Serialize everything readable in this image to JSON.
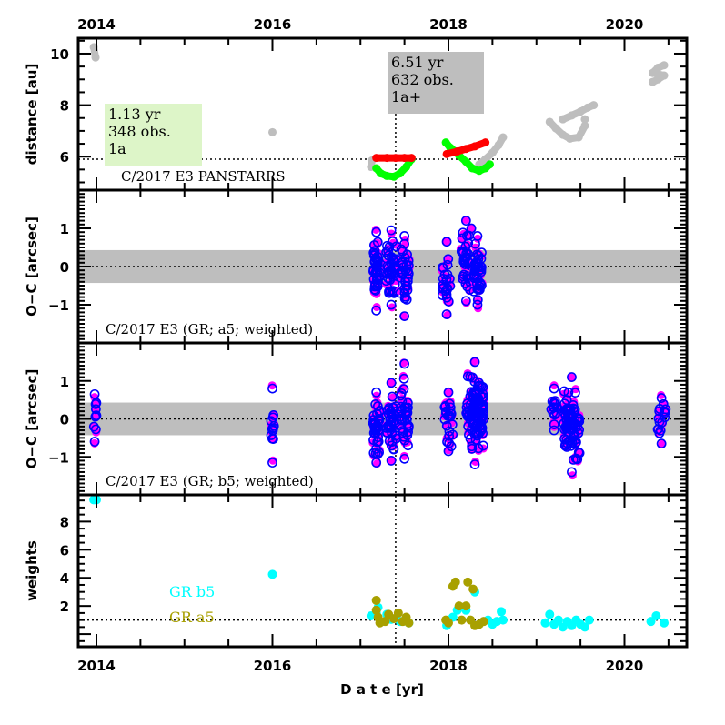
{
  "chart_data": {
    "type": "scatter",
    "title": "C/2017 E3 PANSTARRS",
    "xlabel": "D a t e [yr]",
    "x_ticks": [
      "2014",
      "2016",
      "2018",
      "2020"
    ],
    "x_tick_values": [
      2014,
      2016,
      2018,
      2020
    ],
    "xlim": [
      2013.8,
      2020.7
    ],
    "reference_epoch": 2017.4,
    "colors": {
      "prediscovery": "#bebebe",
      "perihelion_pre": "#00ff00",
      "arc_a5": "#ff0000",
      "oc_weighted_fill": "#ff00ff",
      "oc_circle": "#0000ff",
      "band": "#bebebe",
      "weights_b5": "#00ffff",
      "weights_a5": "#a8a000",
      "box_a": "#ddf5c8",
      "box_b": "#bebebe"
    },
    "panels": [
      {
        "id": "distance",
        "ylabel": "distance [au]",
        "ylim": [
          4.7,
          10.6
        ],
        "y_ticks": [
          "6",
          "8",
          "10"
        ],
        "y_tick_values": [
          6,
          8,
          10
        ],
        "reference_line": 5.9,
        "annotation": "C/2017 E3 PANSTARRS",
        "boxes": [
          {
            "lines": [
              "1.13 yr",
              "348 obs.",
              "1a"
            ],
            "style": "green",
            "position": "left"
          },
          {
            "lines": [
              "6.51 yr",
              "632 obs.",
              "1a+"
            ],
            "style": "grey",
            "position": "center"
          }
        ],
        "series": [
          {
            "name": "gray-observations",
            "color": "#bebebe",
            "points": [
              [
                2013.97,
                10.25
              ],
              [
                2013.99,
                9.85
              ],
              [
                2016.0,
                6.95
              ],
              [
                2017.13,
                5.85
              ],
              [
                2017.12,
                5.6
              ],
              [
                2018.35,
                5.7
              ],
              [
                2018.42,
                5.9
              ],
              [
                2018.5,
                6.15
              ],
              [
                2018.57,
                6.45
              ],
              [
                2018.62,
                6.75
              ],
              [
                2019.15,
                7.35
              ],
              [
                2019.22,
                7.1
              ],
              [
                2019.3,
                6.85
              ],
              [
                2019.38,
                6.7
              ],
              [
                2019.48,
                6.75
              ],
              [
                2019.55,
                7.2
              ],
              [
                2019.3,
                7.45
              ],
              [
                2019.4,
                7.6
              ],
              [
                2019.5,
                7.75
              ],
              [
                2019.58,
                7.9
              ],
              [
                2019.65,
                8.0
              ],
              [
                2019.55,
                7.45
              ],
              [
                2020.32,
                8.9
              ],
              [
                2020.38,
                9.0
              ],
              [
                2020.45,
                9.15
              ],
              [
                2020.32,
                9.25
              ],
              [
                2020.38,
                9.45
              ],
              [
                2020.45,
                9.55
              ]
            ]
          },
          {
            "name": "green-observations",
            "color": "#00ff00",
            "points": [
              [
                2017.18,
                5.55
              ],
              [
                2017.23,
                5.35
              ],
              [
                2017.3,
                5.25
              ],
              [
                2017.38,
                5.22
              ],
              [
                2017.45,
                5.35
              ],
              [
                2017.52,
                5.6
              ],
              [
                2017.58,
                5.9
              ],
              [
                2017.97,
                6.55
              ],
              [
                2018.02,
                6.35
              ],
              [
                2018.08,
                6.2
              ],
              [
                2018.12,
                6.05
              ],
              [
                2018.2,
                5.8
              ],
              [
                2018.27,
                5.55
              ],
              [
                2018.35,
                5.45
              ],
              [
                2018.42,
                5.55
              ],
              [
                2018.47,
                5.7
              ]
            ]
          },
          {
            "name": "red-observations",
            "color": "#ff0000",
            "points": [
              [
                2017.18,
                5.95
              ],
              [
                2017.3,
                5.95
              ],
              [
                2017.4,
                5.95
              ],
              [
                2017.5,
                5.95
              ],
              [
                2017.58,
                5.95
              ],
              [
                2017.98,
                6.1
              ],
              [
                2018.1,
                6.2
              ],
              [
                2018.2,
                6.3
              ],
              [
                2018.3,
                6.4
              ],
              [
                2018.42,
                6.55
              ]
            ]
          }
        ]
      },
      {
        "id": "oc-a5",
        "ylabel": "O−C [arcsec]",
        "ylim": [
          -2.0,
          2.0
        ],
        "y_ticks": [
          "−1",
          "0",
          "1"
        ],
        "y_tick_values": [
          -1,
          0,
          1
        ],
        "band": [
          -0.43,
          0.43
        ],
        "reference_line": 0,
        "annotation": "C/2017 E3 (GR; a5; weighted)",
        "clusters": [
          {
            "center": 2017.18,
            "spread": 0.04,
            "ymin": -1.15,
            "ymax": 0.9,
            "n": 40
          },
          {
            "center": 2017.35,
            "spread": 0.06,
            "ymin": -1.0,
            "ymax": 0.95,
            "n": 40
          },
          {
            "center": 2017.5,
            "spread": 0.05,
            "ymin": -1.3,
            "ymax": 0.8,
            "n": 35
          },
          {
            "center": 2017.98,
            "spread": 0.05,
            "ymin": -1.25,
            "ymax": 0.65,
            "n": 20
          },
          {
            "center": 2018.2,
            "spread": 0.06,
            "ymin": -0.9,
            "ymax": 1.2,
            "n": 35
          },
          {
            "center": 2018.33,
            "spread": 0.05,
            "ymin": -1.0,
            "ymax": 0.8,
            "n": 40
          }
        ]
      },
      {
        "id": "oc-b5",
        "ylabel": "O−C [arcsec]",
        "ylim": [
          -2.0,
          2.0
        ],
        "y_ticks": [
          "−1",
          "0",
          "1"
        ],
        "y_tick_values": [
          -1,
          0,
          1
        ],
        "band": [
          -0.43,
          0.43
        ],
        "reference_line": 0,
        "annotation": "C/2017 E3 (GR; b5; weighted)",
        "clusters": [
          {
            "center": 2013.98,
            "spread": 0.02,
            "ymin": -0.6,
            "ymax": 0.65,
            "n": 8
          },
          {
            "center": 2016.0,
            "spread": 0.02,
            "ymin": -1.15,
            "ymax": 0.8,
            "n": 10
          },
          {
            "center": 2017.18,
            "spread": 0.04,
            "ymin": -1.15,
            "ymax": 0.7,
            "n": 40
          },
          {
            "center": 2017.35,
            "spread": 0.06,
            "ymin": -1.1,
            "ymax": 0.95,
            "n": 40
          },
          {
            "center": 2017.5,
            "spread": 0.05,
            "ymin": -1.05,
            "ymax": 1.45,
            "n": 35
          },
          {
            "center": 2018.0,
            "spread": 0.05,
            "ymin": -0.85,
            "ymax": 0.7,
            "n": 20
          },
          {
            "center": 2018.3,
            "spread": 0.1,
            "ymin": -1.2,
            "ymax": 1.5,
            "n": 110
          },
          {
            "center": 2019.2,
            "spread": 0.04,
            "ymin": -0.3,
            "ymax": 0.8,
            "n": 12
          },
          {
            "center": 2019.4,
            "spread": 0.09,
            "ymin": -1.4,
            "ymax": 1.1,
            "n": 80
          },
          {
            "center": 2020.42,
            "spread": 0.05,
            "ymin": -0.65,
            "ymax": 0.55,
            "n": 14
          }
        ]
      },
      {
        "id": "weights",
        "ylabel": "weights",
        "ylim": [
          -0.9,
          9.9
        ],
        "y_ticks": [
          "2",
          "4",
          "6",
          "8"
        ],
        "y_tick_values": [
          2,
          4,
          6,
          8
        ],
        "reference_line": 1,
        "legend": [
          {
            "label": "GR b5",
            "color": "#00ffff"
          },
          {
            "label": "GR a5",
            "color": "#a8a000"
          }
        ],
        "series": [
          {
            "name": "GR b5",
            "color": "#00ffff",
            "points": [
              [
                2013.97,
                9.55
              ],
              [
                2014.0,
                9.55
              ],
              [
                2016.0,
                4.25
              ],
              [
                2017.12,
                1.3
              ],
              [
                2017.18,
                1.5
              ],
              [
                2017.2,
                1.9
              ],
              [
                2017.3,
                1.4
              ],
              [
                2017.35,
                1.05
              ],
              [
                2017.45,
                0.9
              ],
              [
                2017.55,
                0.8
              ],
              [
                2017.98,
                0.6
              ],
              [
                2018.05,
                1.2
              ],
              [
                2018.1,
                1.7
              ],
              [
                2018.2,
                1.7
              ],
              [
                2018.3,
                3.0
              ],
              [
                2018.45,
                1.0
              ],
              [
                2018.5,
                0.7
              ],
              [
                2018.55,
                0.9
              ],
              [
                2018.6,
                1.6
              ],
              [
                2018.62,
                1.0
              ],
              [
                2019.15,
                1.4
              ],
              [
                2019.1,
                0.8
              ],
              [
                2019.2,
                0.7
              ],
              [
                2019.25,
                1.0
              ],
              [
                2019.3,
                0.5
              ],
              [
                2019.35,
                0.9
              ],
              [
                2019.4,
                0.6
              ],
              [
                2019.45,
                1.0
              ],
              [
                2019.5,
                0.7
              ],
              [
                2019.55,
                0.5
              ],
              [
                2019.6,
                1.0
              ],
              [
                2020.3,
                0.9
              ],
              [
                2020.36,
                1.3
              ],
              [
                2020.45,
                0.8
              ]
            ]
          },
          {
            "name": "GR a5",
            "color": "#a8a000",
            "points": [
              [
                2017.18,
                2.4
              ],
              [
                2017.18,
                1.7
              ],
              [
                2017.2,
                1.2
              ],
              [
                2017.22,
                0.8
              ],
              [
                2017.28,
                0.9
              ],
              [
                2017.32,
                1.4
              ],
              [
                2017.38,
                1.1
              ],
              [
                2017.43,
                1.5
              ],
              [
                2017.48,
                0.9
              ],
              [
                2017.52,
                1.2
              ],
              [
                2017.55,
                0.8
              ],
              [
                2017.97,
                1.0
              ],
              [
                2018.0,
                0.8
              ],
              [
                2018.05,
                3.4
              ],
              [
                2018.08,
                3.7
              ],
              [
                2018.12,
                2.0
              ],
              [
                2018.15,
                1.0
              ],
              [
                2018.2,
                2.0
              ],
              [
                2018.22,
                3.7
              ],
              [
                2018.28,
                3.2
              ],
              [
                2018.25,
                1.0
              ],
              [
                2018.3,
                0.6
              ],
              [
                2018.35,
                0.7
              ],
              [
                2018.4,
                0.9
              ]
            ]
          }
        ]
      }
    ]
  }
}
